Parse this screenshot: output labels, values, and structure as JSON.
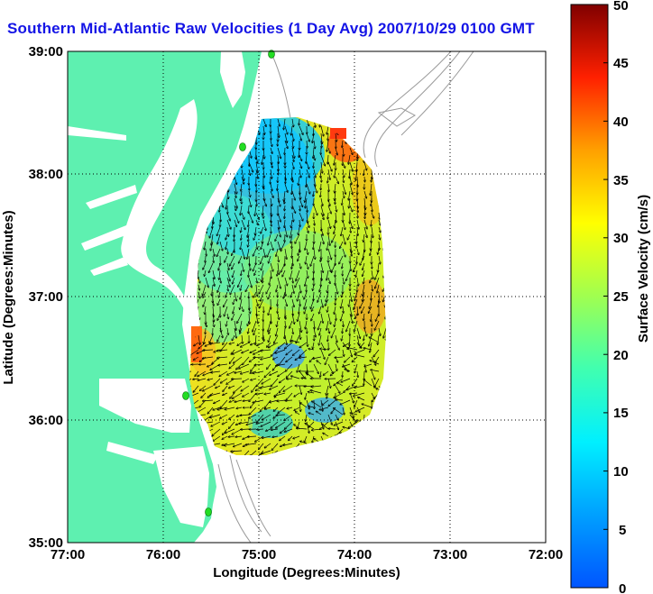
{
  "title": "Southern Mid-Atlantic Raw Velocities (1 Day Avg) 2007/10/29 0100 GMT",
  "xlabel": "Longitude (Degrees:Minutes)",
  "ylabel": "Latitude (Degrees:Minutes)",
  "x_ticks": [
    "77:00",
    "76:00",
    "75:00",
    "74:00",
    "73:00",
    "72:00"
  ],
  "y_ticks": [
    "39:00",
    "38:00",
    "37:00",
    "36:00",
    "35:00"
  ],
  "colorbar": {
    "label": "Surface Velocity (cm/s)",
    "ticks": [
      "50",
      "45",
      "40",
      "35",
      "30",
      "25",
      "20",
      "15",
      "10",
      "5",
      "0"
    ],
    "min": 0,
    "max": 50,
    "colormap": "jet"
  },
  "colors": {
    "land": "#5ef0b0",
    "water": "#ffffff",
    "bathymetry": "#9a9a9a",
    "grid": "#000000",
    "arrows": "#000000",
    "station_markers": "#22dd22",
    "title": "#1414e6"
  },
  "map_data": {
    "type": "vector-field",
    "lon_range": [
      -77.0,
      -72.0
    ],
    "lat_range": [
      35.0,
      39.0
    ],
    "grid_lines": "dotted",
    "stations": [
      {
        "lon": -74.95,
        "lat": 38.98
      },
      {
        "lon": -75.09,
        "lat": 38.23
      },
      {
        "lon": -75.75,
        "lat": 36.18
      },
      {
        "lon": -75.52,
        "lat": 35.25
      }
    ]
  }
}
